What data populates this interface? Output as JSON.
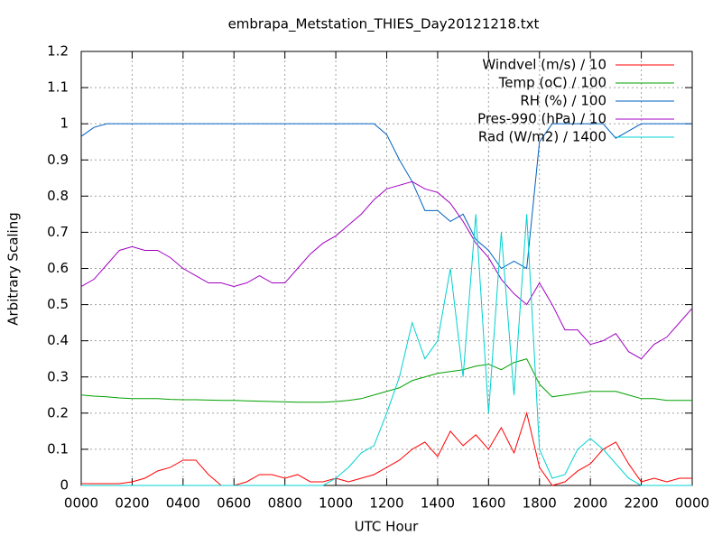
{
  "chart_data": {
    "type": "line",
    "title": "embrapa_Metstation_THIES_Day20121218.txt",
    "x_label": "UTC Hour",
    "y_label": "Arbitrary Scaling",
    "legend": "top-right",
    "grid": true,
    "xlim": [
      0,
      24
    ],
    "ylim": [
      0,
      1.2
    ],
    "xticks": [
      {
        "value": 0,
        "label": "0000"
      },
      {
        "value": 2,
        "label": "0200"
      },
      {
        "value": 4,
        "label": "0400"
      },
      {
        "value": 6,
        "label": "0600"
      },
      {
        "value": 8,
        "label": "0800"
      },
      {
        "value": 10,
        "label": "1000"
      },
      {
        "value": 12,
        "label": "1200"
      },
      {
        "value": 14,
        "label": "1400"
      },
      {
        "value": 16,
        "label": "1600"
      },
      {
        "value": 18,
        "label": "1800"
      },
      {
        "value": 20,
        "label": "2000"
      },
      {
        "value": 22,
        "label": "2200"
      },
      {
        "value": 24,
        "label": "0000"
      }
    ],
    "yticks": [
      0,
      0.1,
      0.2,
      0.3,
      0.4,
      0.5,
      0.6,
      0.7,
      0.8,
      0.9,
      1,
      1.1,
      1.2
    ],
    "x": [
      0,
      0.5,
      1,
      1.5,
      2,
      2.5,
      3,
      3.5,
      4,
      4.5,
      5,
      5.5,
      6,
      6.5,
      7,
      7.5,
      8,
      8.5,
      9,
      9.5,
      10,
      10.5,
      11,
      11.5,
      12,
      12.5,
      13,
      13.5,
      14,
      14.5,
      15,
      15.5,
      16,
      16.5,
      17,
      17.5,
      18,
      18.5,
      19,
      19.5,
      20,
      20.5,
      21,
      21.5,
      22,
      22.5,
      23,
      23.5,
      24
    ],
    "series": [
      {
        "name": "Windvel (m/s) / 10",
        "color": "#ff0000",
        "values": [
          0.005,
          0.005,
          0.005,
          0.005,
          0.01,
          0.02,
          0.04,
          0.05,
          0.07,
          0.07,
          0.03,
          0,
          0,
          0.01,
          0.03,
          0.03,
          0.02,
          0.03,
          0.01,
          0.01,
          0.02,
          0.01,
          0.02,
          0.03,
          0.05,
          0.07,
          0.1,
          0.12,
          0.08,
          0.15,
          0.11,
          0.14,
          0.1,
          0.16,
          0.09,
          0.2,
          0.05,
          0,
          0.01,
          0.04,
          0.06,
          0.1,
          0.12,
          0.06,
          0.01,
          0.02,
          0.01,
          0.02,
          0.02
        ]
      },
      {
        "name": "Temp (oC) / 100",
        "color": "#00a000",
        "values": [
          0.25,
          0.247,
          0.245,
          0.242,
          0.24,
          0.24,
          0.24,
          0.238,
          0.237,
          0.237,
          0.236,
          0.235,
          0.235,
          0.234,
          0.233,
          0.232,
          0.231,
          0.23,
          0.23,
          0.23,
          0.232,
          0.235,
          0.24,
          0.25,
          0.26,
          0.27,
          0.29,
          0.3,
          0.31,
          0.315,
          0.32,
          0.33,
          0.335,
          0.32,
          0.34,
          0.35,
          0.28,
          0.245,
          0.25,
          0.255,
          0.26,
          0.26,
          0.26,
          0.25,
          0.24,
          0.24,
          0.235,
          0.235,
          0.235
        ]
      },
      {
        "name": "RH (%) / 100",
        "color": "#0060c0",
        "values": [
          0.965,
          0.99,
          1,
          1,
          1,
          1,
          1,
          1,
          1,
          1,
          1,
          1,
          1,
          1,
          1,
          1,
          1,
          1,
          1,
          1,
          1,
          1,
          1,
          1,
          0.97,
          0.9,
          0.84,
          0.76,
          0.76,
          0.73,
          0.75,
          0.68,
          0.65,
          0.6,
          0.62,
          0.6,
          0.95,
          1,
          1,
          1,
          1,
          1,
          0.96,
          0.98,
          1,
          1,
          1,
          1,
          1
        ]
      },
      {
        "name": "Pres-990 (hPa) / 10",
        "color": "#a000c0",
        "values": [
          0.55,
          0.57,
          0.61,
          0.65,
          0.66,
          0.65,
          0.65,
          0.63,
          0.6,
          0.58,
          0.56,
          0.56,
          0.55,
          0.56,
          0.58,
          0.56,
          0.56,
          0.6,
          0.64,
          0.67,
          0.69,
          0.72,
          0.75,
          0.79,
          0.82,
          0.83,
          0.84,
          0.82,
          0.81,
          0.78,
          0.73,
          0.67,
          0.63,
          0.57,
          0.53,
          0.5,
          0.56,
          0.5,
          0.43,
          0.43,
          0.39,
          0.4,
          0.42,
          0.37,
          0.35,
          0.39,
          0.41,
          0.45,
          0.49
        ]
      },
      {
        "name": "Rad (W/m2) / 1400",
        "color": "#00d0d0",
        "values": [
          0,
          0,
          0,
          0,
          0,
          0,
          0,
          0,
          0,
          0,
          0,
          0,
          0,
          0,
          0,
          0,
          0,
          0,
          0,
          0,
          0.02,
          0.05,
          0.09,
          0.11,
          0.2,
          0.3,
          0.45,
          0.35,
          0.4,
          0.6,
          0.3,
          0.75,
          0.2,
          0.7,
          0.25,
          0.75,
          0.1,
          0.02,
          0.03,
          0.1,
          0.13,
          0.1,
          0.06,
          0.02,
          0,
          0,
          0,
          0,
          0
        ]
      }
    ]
  }
}
